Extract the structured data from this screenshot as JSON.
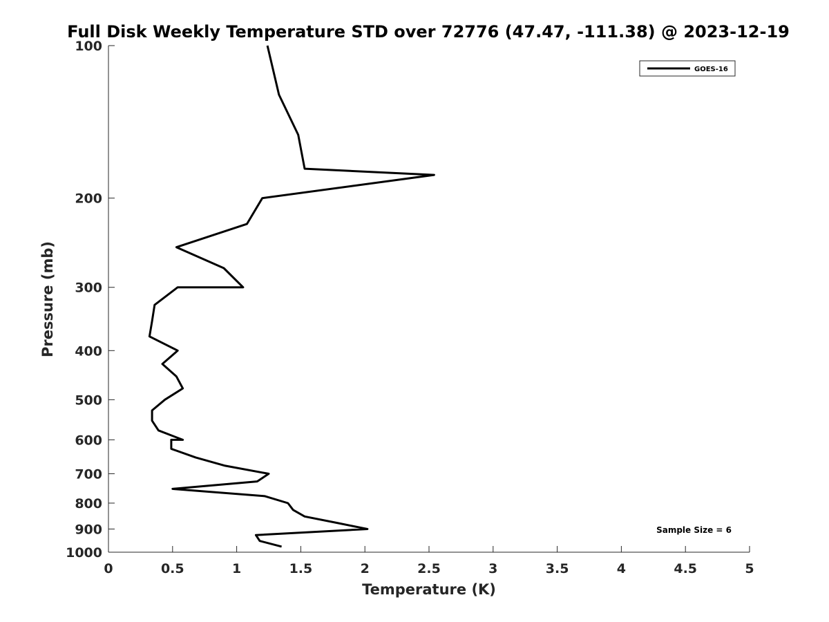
{
  "chart_data": {
    "type": "line",
    "title": "Full Disk Weekly Temperature STD over 72776 (47.47, -111.38) @ 2023-12-19",
    "xlabel": "Temperature (K)",
    "ylabel": "Pressure (mb)",
    "xlim": [
      0,
      5
    ],
    "ylim": [
      1000,
      100
    ],
    "y_scale": "log",
    "y_reversed": true,
    "x_ticks": [
      "0",
      "0.5",
      "1",
      "1.5",
      "2",
      "2.5",
      "3",
      "3.5",
      "4",
      "4.5",
      "5"
    ],
    "y_ticks": [
      "100",
      "200",
      "300",
      "400",
      "500",
      "600",
      "700",
      "800",
      "900",
      "1000"
    ],
    "grid": false,
    "legend_position": "top-right",
    "annotation": "Sample Size = 6",
    "series": [
      {
        "name": "GOES-16",
        "color": "#000000",
        "points": [
          {
            "x": 1.24,
            "y": 100
          },
          {
            "x": 1.33,
            "y": 125
          },
          {
            "x": 1.48,
            "y": 150
          },
          {
            "x": 1.53,
            "y": 175
          },
          {
            "x": 2.54,
            "y": 180
          },
          {
            "x": 1.2,
            "y": 200
          },
          {
            "x": 1.08,
            "y": 225
          },
          {
            "x": 0.53,
            "y": 250
          },
          {
            "x": 0.9,
            "y": 275
          },
          {
            "x": 1.05,
            "y": 300
          },
          {
            "x": 0.54,
            "y": 300
          },
          {
            "x": 0.36,
            "y": 325
          },
          {
            "x": 0.34,
            "y": 350
          },
          {
            "x": 0.32,
            "y": 375
          },
          {
            "x": 0.54,
            "y": 400
          },
          {
            "x": 0.42,
            "y": 425
          },
          {
            "x": 0.53,
            "y": 450
          },
          {
            "x": 0.58,
            "y": 475
          },
          {
            "x": 0.44,
            "y": 500
          },
          {
            "x": 0.34,
            "y": 525
          },
          {
            "x": 0.34,
            "y": 550
          },
          {
            "x": 0.39,
            "y": 575
          },
          {
            "x": 0.58,
            "y": 600
          },
          {
            "x": 0.49,
            "y": 600
          },
          {
            "x": 0.49,
            "y": 625
          },
          {
            "x": 0.68,
            "y": 650
          },
          {
            "x": 0.91,
            "y": 675
          },
          {
            "x": 1.25,
            "y": 700
          },
          {
            "x": 1.16,
            "y": 725
          },
          {
            "x": 0.5,
            "y": 750
          },
          {
            "x": 1.22,
            "y": 775
          },
          {
            "x": 1.4,
            "y": 800
          },
          {
            "x": 1.44,
            "y": 825
          },
          {
            "x": 1.53,
            "y": 850
          },
          {
            "x": 1.78,
            "y": 875
          },
          {
            "x": 2.02,
            "y": 900
          },
          {
            "x": 1.15,
            "y": 925
          },
          {
            "x": 1.18,
            "y": 950
          },
          {
            "x": 1.35,
            "y": 975
          }
        ]
      }
    ]
  }
}
